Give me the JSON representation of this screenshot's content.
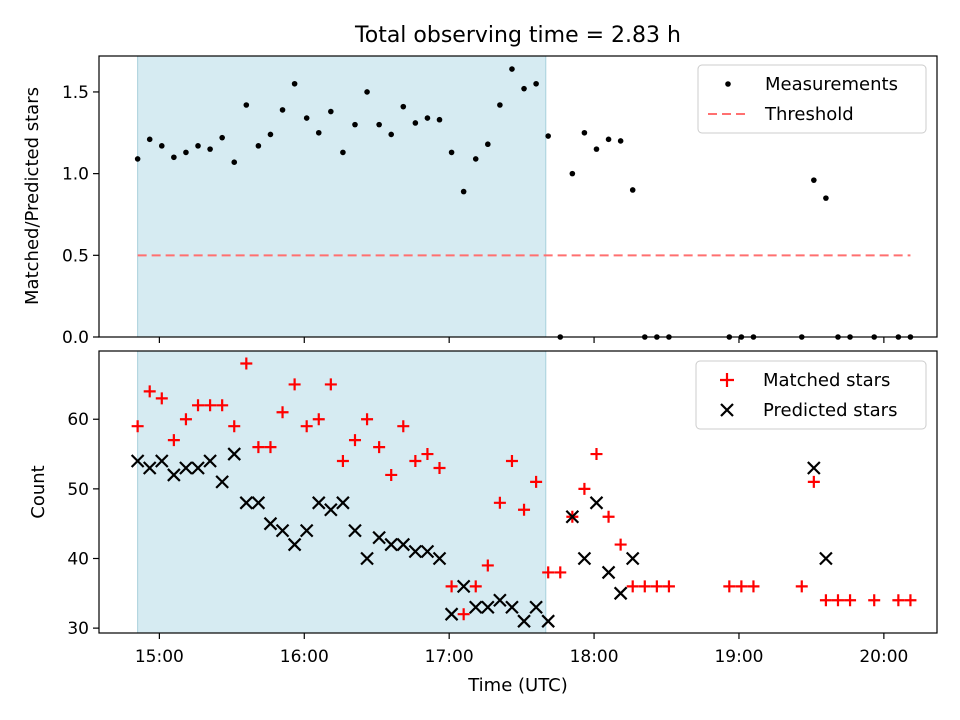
{
  "chart_data": {
    "type": "scatter",
    "title": "Total observing time = 2.83 h",
    "xlabel": "Time (UTC)",
    "x_unit": "hours UTC",
    "xlim": [
      "14:35",
      "20:22"
    ],
    "x_ticks": [
      "15:00",
      "16:00",
      "17:00",
      "18:00",
      "19:00",
      "20:00"
    ],
    "shaded_interval": {
      "start": "14:51",
      "end": "17:40",
      "color": "#add8e6"
    },
    "panels": [
      {
        "ylabel": "Matched/Predicted stars",
        "ylim": [
          0,
          1.72
        ],
        "y_ticks": [
          "0.0",
          "0.5",
          "1.0",
          "1.5"
        ],
        "legend_position": "upper right",
        "series": [
          {
            "name": "Measurements",
            "marker": "dot",
            "color": "#000000",
            "points": [
              [
                "14:51",
                1.09
              ],
              [
                "14:56",
                1.21
              ],
              [
                "15:01",
                1.17
              ],
              [
                "15:06",
                1.1
              ],
              [
                "15:11",
                1.13
              ],
              [
                "15:16",
                1.17
              ],
              [
                "15:21",
                1.15
              ],
              [
                "15:26",
                1.22
              ],
              [
                "15:31",
                1.07
              ],
              [
                "15:36",
                1.42
              ],
              [
                "15:41",
                1.17
              ],
              [
                "15:46",
                1.24
              ],
              [
                "15:51",
                1.39
              ],
              [
                "15:56",
                1.55
              ],
              [
                "16:01",
                1.34
              ],
              [
                "16:06",
                1.25
              ],
              [
                "16:11",
                1.38
              ],
              [
                "16:16",
                1.13
              ],
              [
                "16:21",
                1.3
              ],
              [
                "16:26",
                1.5
              ],
              [
                "16:31",
                1.3
              ],
              [
                "16:36",
                1.24
              ],
              [
                "16:41",
                1.41
              ],
              [
                "16:46",
                1.31
              ],
              [
                "16:51",
                1.34
              ],
              [
                "16:56",
                1.33
              ],
              [
                "17:01",
                1.13
              ],
              [
                "17:06",
                0.89
              ],
              [
                "17:11",
                1.09
              ],
              [
                "17:16",
                1.18
              ],
              [
                "17:21",
                1.42
              ],
              [
                "17:26",
                1.64
              ],
              [
                "17:31",
                1.52
              ],
              [
                "17:36",
                1.55
              ],
              [
                "17:41",
                1.23
              ],
              [
                "17:46",
                0.0
              ],
              [
                "17:51",
                1.0
              ],
              [
                "17:56",
                1.25
              ],
              [
                "18:01",
                1.15
              ],
              [
                "18:06",
                1.21
              ],
              [
                "18:11",
                1.2
              ],
              [
                "18:16",
                0.9
              ],
              [
                "18:21",
                0.0
              ],
              [
                "18:26",
                0.0
              ],
              [
                "18:31",
                0.0
              ],
              [
                "18:56",
                0.0
              ],
              [
                "19:01",
                0.0
              ],
              [
                "19:06",
                0.0
              ],
              [
                "19:26",
                0.0
              ],
              [
                "19:31",
                0.96
              ],
              [
                "19:36",
                0.85
              ],
              [
                "19:41",
                0.0
              ],
              [
                "19:46",
                0.0
              ],
              [
                "19:56",
                0.0
              ],
              [
                "20:06",
                0.0
              ],
              [
                "20:11",
                0.0
              ]
            ]
          },
          {
            "name": "Threshold",
            "style": "dashed line",
            "color": "#ff7070",
            "points": [
              [
                "14:51",
                0.5
              ],
              [
                "20:11",
                0.5
              ]
            ]
          }
        ]
      },
      {
        "ylabel": "Count",
        "ylim": [
          29.3,
          69.8
        ],
        "y_ticks": [
          "30",
          "40",
          "50",
          "60"
        ],
        "legend_position": "upper right",
        "series": [
          {
            "name": "Matched stars",
            "marker": "plus",
            "color": "#ff0000",
            "points": [
              [
                "14:51",
                59
              ],
              [
                "14:56",
                64
              ],
              [
                "15:01",
                63
              ],
              [
                "15:06",
                57
              ],
              [
                "15:11",
                60
              ],
              [
                "15:16",
                62
              ],
              [
                "15:21",
                62
              ],
              [
                "15:26",
                62
              ],
              [
                "15:31",
                59
              ],
              [
                "15:36",
                68
              ],
              [
                "15:41",
                56
              ],
              [
                "15:46",
                56
              ],
              [
                "15:51",
                61
              ],
              [
                "15:56",
                65
              ],
              [
                "16:01",
                59
              ],
              [
                "16:06",
                60
              ],
              [
                "16:11",
                65
              ],
              [
                "16:16",
                54
              ],
              [
                "16:21",
                57
              ],
              [
                "16:26",
                60
              ],
              [
                "16:31",
                56
              ],
              [
                "16:36",
                52
              ],
              [
                "16:41",
                59
              ],
              [
                "16:46",
                54
              ],
              [
                "16:51",
                55
              ],
              [
                "16:56",
                53
              ],
              [
                "17:01",
                36
              ],
              [
                "17:06",
                32
              ],
              [
                "17:11",
                36
              ],
              [
                "17:16",
                39
              ],
              [
                "17:21",
                48
              ],
              [
                "17:26",
                54
              ],
              [
                "17:31",
                47
              ],
              [
                "17:36",
                51
              ],
              [
                "17:41",
                38
              ],
              [
                "17:46",
                38
              ],
              [
                "17:51",
                46
              ],
              [
                "17:56",
                50
              ],
              [
                "18:01",
                55
              ],
              [
                "18:06",
                46
              ],
              [
                "18:11",
                42
              ],
              [
                "18:16",
                36
              ],
              [
                "18:21",
                36
              ],
              [
                "18:26",
                36
              ],
              [
                "18:31",
                36
              ],
              [
                "18:56",
                36
              ],
              [
                "19:01",
                36
              ],
              [
                "19:06",
                36
              ],
              [
                "19:26",
                36
              ],
              [
                "19:31",
                51
              ],
              [
                "19:36",
                34
              ],
              [
                "19:41",
                34
              ],
              [
                "19:46",
                34
              ],
              [
                "19:56",
                34
              ],
              [
                "20:06",
                34
              ],
              [
                "20:11",
                34
              ]
            ]
          },
          {
            "name": "Predicted stars",
            "marker": "x",
            "color": "#000000",
            "points": [
              [
                "14:51",
                54
              ],
              [
                "14:56",
                53
              ],
              [
                "15:01",
                54
              ],
              [
                "15:06",
                52
              ],
              [
                "15:11",
                53
              ],
              [
                "15:16",
                53
              ],
              [
                "15:21",
                54
              ],
              [
                "15:26",
                51
              ],
              [
                "15:31",
                55
              ],
              [
                "15:36",
                48
              ],
              [
                "15:41",
                48
              ],
              [
                "15:46",
                45
              ],
              [
                "15:51",
                44
              ],
              [
                "15:56",
                42
              ],
              [
                "16:01",
                44
              ],
              [
                "16:06",
                48
              ],
              [
                "16:11",
                47
              ],
              [
                "16:16",
                48
              ],
              [
                "16:21",
                44
              ],
              [
                "16:26",
                40
              ],
              [
                "16:31",
                43
              ],
              [
                "16:36",
                42
              ],
              [
                "16:41",
                42
              ],
              [
                "16:46",
                41
              ],
              [
                "16:51",
                41
              ],
              [
                "16:56",
                40
              ],
              [
                "17:01",
                32
              ],
              [
                "17:06",
                36
              ],
              [
                "17:11",
                33
              ],
              [
                "17:16",
                33
              ],
              [
                "17:21",
                34
              ],
              [
                "17:26",
                33
              ],
              [
                "17:31",
                31
              ],
              [
                "17:36",
                33
              ],
              [
                "17:41",
                31
              ],
              [
                "17:51",
                46
              ],
              [
                "17:56",
                40
              ],
              [
                "18:01",
                48
              ],
              [
                "18:06",
                38
              ],
              [
                "18:11",
                35
              ],
              [
                "18:16",
                40
              ],
              [
                "19:31",
                53
              ],
              [
                "19:36",
                40
              ]
            ]
          }
        ]
      }
    ]
  }
}
